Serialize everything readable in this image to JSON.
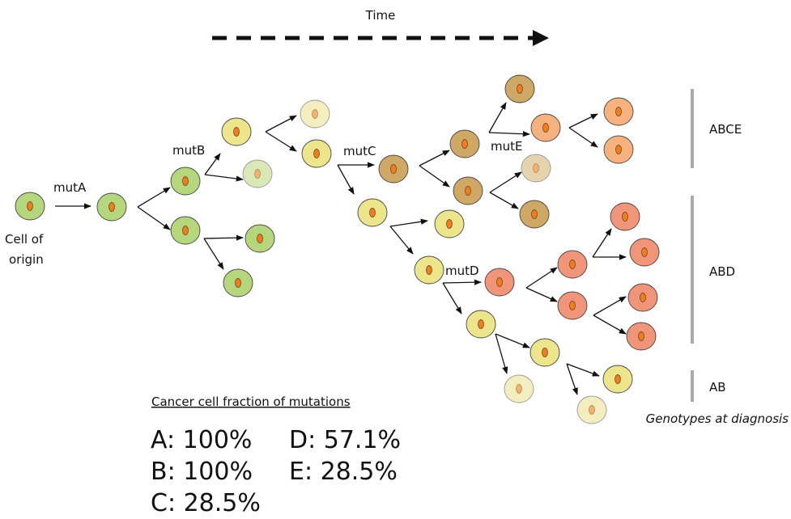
{
  "header": {
    "title": "Time"
  },
  "origin_label": [
    "Cell of",
    "origin"
  ],
  "mutations": [
    "mutA",
    "mutB",
    "mutC",
    "mutD",
    "mutE"
  ],
  "genotypes": [
    "ABCE",
    "ABD",
    "AB"
  ],
  "genotypes_caption": "Genotypes at diagnosis",
  "fractions": {
    "heading": "Cancer cell fraction of mutations",
    "items": [
      "A: 100%",
      "B: 100%",
      "C: 28.5%",
      "D: 57.1%",
      "E: 28.5%"
    ]
  }
}
